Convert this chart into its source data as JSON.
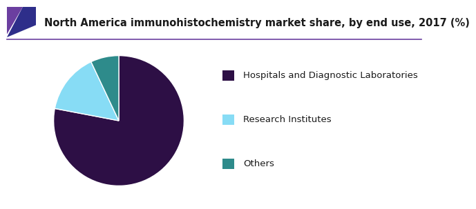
{
  "title": "North America immunohistochemistry market share, by end use, 2017 (%)",
  "labels": [
    "Hospitals and Diagnostic Laboratories",
    "Research Institutes",
    "Others"
  ],
  "values": [
    78.0,
    15.0,
    7.0
  ],
  "colors": [
    "#2d0f45",
    "#87dcf5",
    "#2e8b8b"
  ],
  "startangle": 90,
  "background_color": "#ffffff",
  "title_fontsize": 10.5,
  "legend_fontsize": 9.5,
  "header_left_color": "#6b3fa0",
  "header_right_color": "#2e2e8a",
  "header_line_color": "#6b3fa0"
}
